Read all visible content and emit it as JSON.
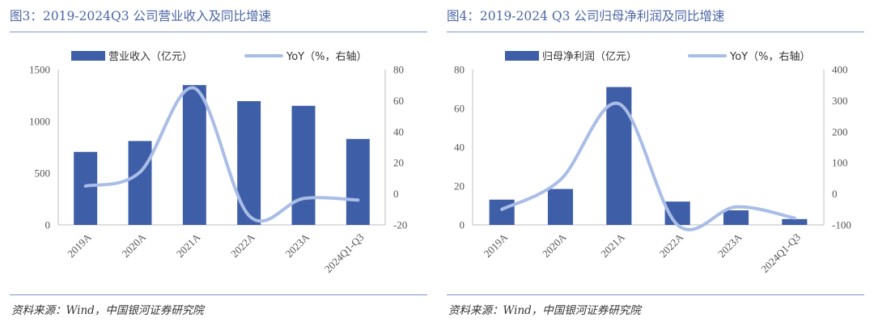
{
  "figures": [
    {
      "title": "图3：2019-2024Q3 公司营业收入及同比增速",
      "source": "资料来源：Wind，中国银河证券研究院",
      "legend": {
        "bar": "营业收入（亿元）",
        "line": "YoY（%，右轴）"
      }
    },
    {
      "title": "图4：2019-2024 Q3 公司归母净利润及同比增速",
      "source": "资料来源：Wind，中国银河证券研究院",
      "legend": {
        "bar": "归母净利润（亿元）",
        "line": "YoY（%，右轴）"
      }
    }
  ],
  "chart_data": [
    {
      "type": "bar",
      "categories": [
        "2019A",
        "2020A",
        "2021A",
        "2022A",
        "2023A",
        "2024Q1-Q3"
      ],
      "series": [
        {
          "name": "营业收入（亿元）",
          "type": "bar",
          "axis": "left",
          "values": [
            705,
            810,
            1350,
            1195,
            1150,
            830
          ]
        },
        {
          "name": "YoY（%，右轴）",
          "type": "line",
          "axis": "right",
          "smooth": true,
          "values": [
            5,
            14,
            68,
            -14,
            -3,
            -4
          ]
        }
      ],
      "ylim": [
        0,
        1500
      ],
      "yticks": [
        0,
        500,
        1000,
        1500
      ],
      "y2lim": [
        -20,
        80
      ],
      "y2ticks": [
        -20,
        0,
        20,
        40,
        60,
        80
      ],
      "colors": {
        "bar": "#3e5ea8",
        "line": "#a9bde6"
      },
      "legend_position": "top"
    },
    {
      "type": "bar",
      "categories": [
        "2019A",
        "2020A",
        "2021A",
        "2022A",
        "2023A",
        "2024Q1-Q3"
      ],
      "series": [
        {
          "name": "归母净利润（亿元）",
          "type": "bar",
          "axis": "left",
          "values": [
            13,
            18.5,
            71,
            12,
            7.5,
            3
          ]
        },
        {
          "name": "YoY（%，右轴）",
          "type": "line",
          "axis": "right",
          "smooth": true,
          "values": [
            -50,
            45,
            290,
            -100,
            -42,
            -78
          ]
        }
      ],
      "ylim": [
        0,
        80
      ],
      "yticks": [
        0,
        20,
        40,
        60,
        80
      ],
      "y2lim": [
        -100,
        400
      ],
      "y2ticks": [
        -100,
        0,
        100,
        200,
        300,
        400
      ],
      "colors": {
        "bar": "#3e5ea8",
        "line": "#a9bde6"
      },
      "legend_position": "top"
    }
  ]
}
